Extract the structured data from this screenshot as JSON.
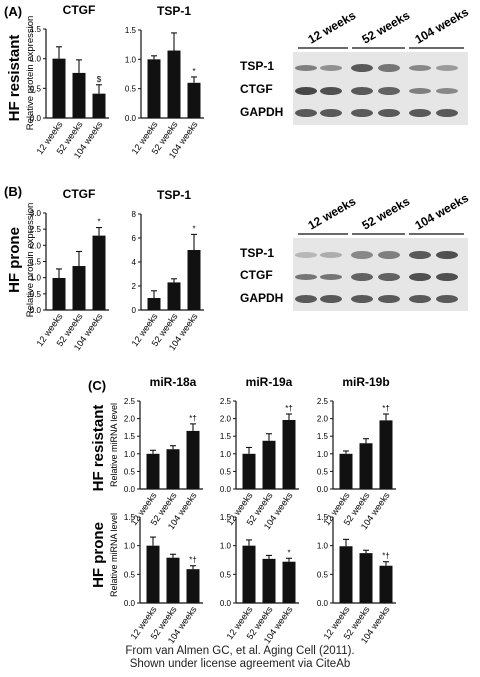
{
  "panels": {
    "a": {
      "label": "(A)",
      "row_title": "HF resistant",
      "ylabel": "Relative protein expression",
      "blot": {
        "group_labels": [
          "12 weeks",
          "52 weeks",
          "104 weeks"
        ],
        "bands": [
          "TSP-1",
          "CTGF",
          "GAPDH"
        ]
      }
    },
    "b": {
      "label": "(B)",
      "row_title": "HF prone",
      "ylabel": "Relative protein expression",
      "blot": {
        "group_labels": [
          "12 weeks",
          "52 weeks",
          "104 weeks"
        ],
        "bands": [
          "TSP-1",
          "CTGF",
          "GAPDH"
        ]
      }
    },
    "c": {
      "label": "(C)",
      "row_titles": [
        "HF resistant",
        "HF prone"
      ],
      "ylabel": "Relative miRNA level"
    }
  },
  "chart_data": [
    {
      "id": "a1",
      "type": "bar",
      "title": "CTGF",
      "categories": [
        "12 weeks",
        "52 weeks",
        "104 weeks"
      ],
      "values": [
        1.0,
        0.76,
        0.41
      ],
      "errors": [
        0.2,
        0.22,
        0.15
      ],
      "marks": [
        "",
        "",
        "$"
      ],
      "ylim": [
        0,
        1.5
      ],
      "yticks": [
        "0.0",
        "0.5",
        "1.0",
        "1.5"
      ]
    },
    {
      "id": "a2",
      "type": "bar",
      "title": "TSP-1",
      "categories": [
        "12 weeks",
        "52 weeks",
        "104 weeks"
      ],
      "values": [
        1.0,
        1.15,
        0.6
      ],
      "errors": [
        0.06,
        0.3,
        0.1
      ],
      "marks": [
        "",
        "",
        "*"
      ],
      "ylim": [
        0,
        1.5
      ],
      "yticks": [
        "0.0",
        "0.5",
        "1.0",
        "1.5"
      ]
    },
    {
      "id": "b1",
      "type": "bar",
      "title": "CTGF",
      "categories": [
        "12 weeks",
        "52 weeks",
        "104 weeks"
      ],
      "values": [
        0.99,
        1.36,
        2.3
      ],
      "errors": [
        0.28,
        0.45,
        0.25
      ],
      "marks": [
        "",
        "",
        "*"
      ],
      "ylim": [
        0,
        3.0
      ],
      "yticks": [
        "0.0",
        "0.5",
        "1.0",
        "1.5",
        "2.0",
        "2.5",
        "3.0"
      ]
    },
    {
      "id": "b2",
      "type": "bar",
      "title": "TSP-1",
      "categories": [
        "12 weeks",
        "52 weeks",
        "104 weeks"
      ],
      "values": [
        1.0,
        2.3,
        5.0
      ],
      "errors": [
        0.6,
        0.3,
        1.3
      ],
      "marks": [
        "",
        "",
        "*"
      ],
      "ylim": [
        0,
        8
      ],
      "yticks": [
        "0",
        "2",
        "4",
        "6",
        "8"
      ]
    },
    {
      "id": "c1",
      "type": "bar",
      "title": "miR-18a",
      "categories": [
        "12 weeks",
        "52 weeks",
        "104 weeks"
      ],
      "values": [
        1.0,
        1.13,
        1.65
      ],
      "errors": [
        0.1,
        0.1,
        0.2
      ],
      "marks": [
        "",
        "",
        "*†"
      ],
      "ylim": [
        0,
        2.5
      ],
      "yticks": [
        "0.0",
        "0.5",
        "1.0",
        "1.5",
        "2.0",
        "2.5"
      ]
    },
    {
      "id": "c2",
      "type": "bar",
      "title": "miR-19a",
      "categories": [
        "12 weeks",
        "52 weeks",
        "104 weeks"
      ],
      "values": [
        1.0,
        1.37,
        1.96
      ],
      "errors": [
        0.18,
        0.2,
        0.17
      ],
      "marks": [
        "",
        "",
        "*†"
      ],
      "ylim": [
        0,
        2.5
      ],
      "yticks": [
        "0.0",
        "0.5",
        "1.0",
        "1.5",
        "2.0",
        "2.5"
      ]
    },
    {
      "id": "c3",
      "type": "bar",
      "title": "miR-19b",
      "categories": [
        "12 weeks",
        "52 weeks",
        "104 weeks"
      ],
      "values": [
        1.0,
        1.3,
        1.95
      ],
      "errors": [
        0.08,
        0.13,
        0.18
      ],
      "marks": [
        "",
        "",
        "*†"
      ],
      "ylim": [
        0,
        2.5
      ],
      "yticks": [
        "0.0",
        "0.5",
        "1.0",
        "1.5",
        "2.0",
        "2.5"
      ]
    },
    {
      "id": "c4",
      "type": "bar",
      "title": "",
      "categories": [
        "12 weeks",
        "52 weeks",
        "104 weeks"
      ],
      "values": [
        1.0,
        0.79,
        0.59
      ],
      "errors": [
        0.15,
        0.06,
        0.06
      ],
      "marks": [
        "",
        "",
        "*†"
      ],
      "ylim": [
        0,
        1.5
      ],
      "yticks": [
        "0.0",
        "0.5",
        "1.0",
        "1.5"
      ]
    },
    {
      "id": "c5",
      "type": "bar",
      "title": "",
      "categories": [
        "12 weeks",
        "52 weeks",
        "104 weeks"
      ],
      "values": [
        1.0,
        0.77,
        0.72
      ],
      "errors": [
        0.1,
        0.06,
        0.06
      ],
      "marks": [
        "",
        "",
        "*"
      ],
      "ylim": [
        0,
        1.5
      ],
      "yticks": [
        "0.0",
        "0.5",
        "1.0",
        "1.5"
      ]
    },
    {
      "id": "c6",
      "type": "bar",
      "title": "",
      "categories": [
        "12 weeks",
        "52 weeks",
        "104 weeks"
      ],
      "values": [
        0.99,
        0.87,
        0.65
      ],
      "errors": [
        0.12,
        0.05,
        0.07
      ],
      "marks": [
        "",
        "",
        "*†"
      ],
      "ylim": [
        0,
        1.5
      ],
      "yticks": [
        "0.0",
        "0.5",
        "1.0",
        "1.5"
      ]
    }
  ],
  "credit": [
    "From van Almen GC, et al. Aging Cell (2011).",
    "Shown under license agreement via CiteAb"
  ],
  "colors": {
    "bar": "#111111",
    "blot_bg": "#e6e6e6",
    "band": "#2a2a2a",
    "page": "#ffffff"
  }
}
